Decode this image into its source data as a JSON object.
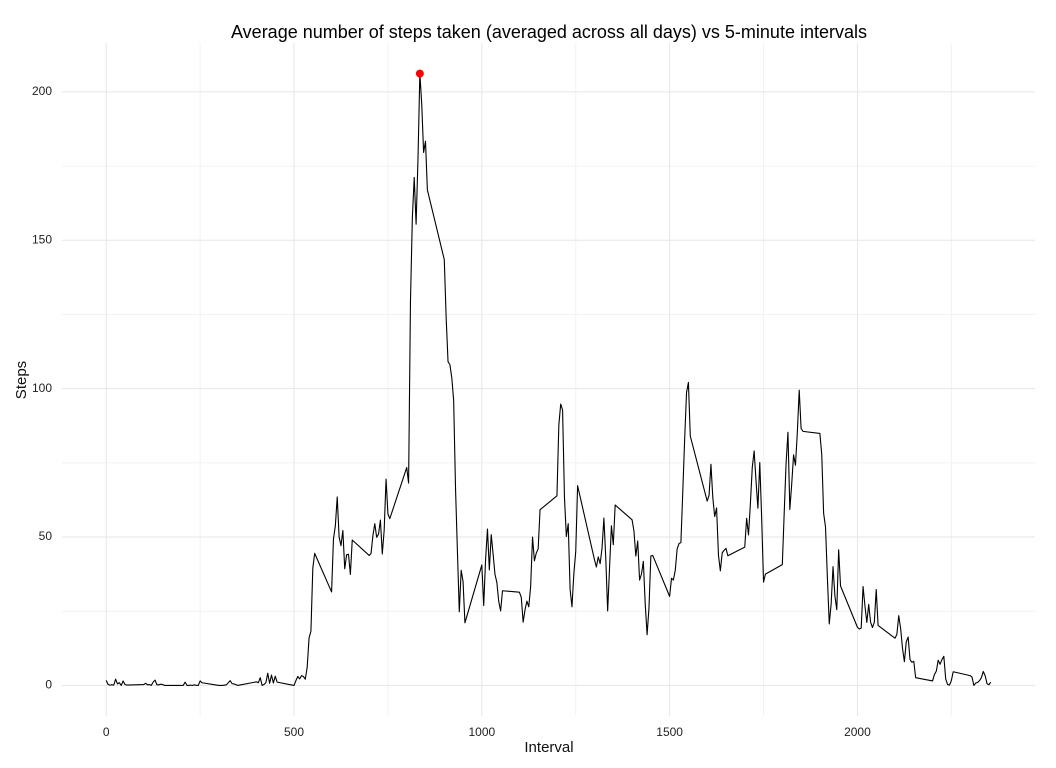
{
  "chart_data": {
    "type": "line",
    "title": "Average number of steps taken (averaged across all days) vs 5-minute intervals",
    "x_label": "Interval",
    "y_label": "Steps",
    "x": [
      0,
      5,
      10,
      15,
      20,
      25,
      30,
      35,
      40,
      45,
      50,
      55,
      100,
      105,
      110,
      115,
      120,
      125,
      130,
      135,
      140,
      145,
      150,
      155,
      200,
      205,
      210,
      215,
      220,
      225,
      230,
      235,
      240,
      245,
      250,
      255,
      300,
      310,
      320,
      330,
      335,
      340,
      350,
      400,
      405,
      410,
      415,
      420,
      425,
      430,
      435,
      440,
      445,
      450,
      455,
      500,
      505,
      510,
      515,
      520,
      525,
      530,
      535,
      540,
      545,
      550,
      555,
      600,
      605,
      610,
      615,
      620,
      625,
      630,
      635,
      640,
      645,
      650,
      655,
      700,
      705,
      710,
      715,
      720,
      725,
      730,
      735,
      740,
      745,
      750,
      755,
      800,
      805,
      810,
      815,
      820,
      825,
      830,
      835,
      840,
      845,
      850,
      855,
      900,
      905,
      910,
      915,
      920,
      925,
      930,
      935,
      940,
      945,
      950,
      955,
      1000,
      1005,
      1010,
      1015,
      1020,
      1025,
      1030,
      1035,
      1040,
      1045,
      1050,
      1055,
      1100,
      1105,
      1110,
      1115,
      1120,
      1125,
      1130,
      1135,
      1140,
      1145,
      1150,
      1155,
      1200,
      1205,
      1210,
      1215,
      1220,
      1225,
      1230,
      1235,
      1240,
      1245,
      1250,
      1255,
      1300,
      1305,
      1310,
      1315,
      1320,
      1325,
      1330,
      1335,
      1340,
      1345,
      1350,
      1355,
      1400,
      1405,
      1410,
      1415,
      1420,
      1425,
      1430,
      1435,
      1440,
      1445,
      1450,
      1455,
      1500,
      1505,
      1510,
      1515,
      1520,
      1525,
      1530,
      1535,
      1540,
      1545,
      1550,
      1555,
      1600,
      1605,
      1610,
      1615,
      1620,
      1625,
      1630,
      1635,
      1640,
      1645,
      1650,
      1655,
      1700,
      1705,
      1710,
      1715,
      1720,
      1725,
      1730,
      1735,
      1740,
      1745,
      1750,
      1755,
      1800,
      1805,
      1810,
      1815,
      1820,
      1825,
      1830,
      1835,
      1840,
      1845,
      1850,
      1855,
      1900,
      1905,
      1910,
      1915,
      1920,
      1925,
      1930,
      1935,
      1940,
      1945,
      1950,
      1955,
      2000,
      2005,
      2010,
      2015,
      2020,
      2025,
      2030,
      2035,
      2040,
      2045,
      2050,
      2055,
      2100,
      2105,
      2110,
      2115,
      2120,
      2125,
      2130,
      2135,
      2140,
      2145,
      2150,
      2155,
      2200,
      2205,
      2210,
      2215,
      2220,
      2225,
      2230,
      2235,
      2240,
      2245,
      2250,
      2255,
      2300,
      2305,
      2310,
      2315,
      2320,
      2325,
      2330,
      2335,
      2340,
      2345,
      2350,
      2355
    ],
    "series": [
      {
        "color": "#000000",
        "values": [
          1.7,
          0.3,
          0.1,
          0.2,
          0.1,
          2.1,
          0.5,
          0.9,
          0,
          1.5,
          0.3,
          0.1,
          0.3,
          0.7,
          0.2,
          0.3,
          0,
          1.1,
          1.8,
          0.2,
          0.2,
          0.4,
          0.3,
          0,
          0,
          0,
          1.1,
          0,
          0,
          0.1,
          0,
          0.2,
          0,
          0,
          1.5,
          0.9,
          0,
          0,
          0.2,
          1.6,
          0.6,
          0.5,
          0,
          1.2,
          0.9,
          2.6,
          0,
          0.3,
          0.9,
          4.1,
          0.7,
          3.5,
          0.8,
          3.1,
          1.1,
          0,
          1.6,
          3.0,
          2.2,
          3.3,
          3.0,
          2.1,
          6.1,
          16.0,
          18.3,
          39.5,
          44.5,
          31.5,
          49.3,
          53.8,
          63.5,
          50.0,
          47.1,
          52.2,
          39.3,
          44.0,
          44.2,
          37.4,
          49.0,
          43.8,
          44.4,
          50.5,
          54.5,
          49.9,
          51.0,
          55.7,
          44.3,
          52.3,
          69.5,
          57.8,
          56.2,
          73.4,
          68.2,
          129.4,
          157.5,
          171.2,
          155.4,
          177.3,
          206.17,
          195.9,
          179.6,
          183.4,
          167.0,
          143.5,
          124.0,
          109.1,
          108.1,
          103.7,
          96.0,
          66.2,
          45.2,
          24.8,
          38.8,
          35.0,
          21.1,
          40.6,
          26.9,
          42.4,
          52.7,
          38.9,
          50.8,
          44.3,
          37.4,
          34.7,
          28.3,
          25.1,
          31.9,
          31.4,
          29.7,
          21.3,
          25.5,
          28.4,
          26.5,
          33.4,
          50.0,
          42.0,
          44.6,
          46.0,
          59.2,
          63.9,
          87.7,
          94.8,
          92.8,
          63.4,
          50.2,
          54.5,
          32.4,
          26.5,
          37.7,
          45.1,
          67.3,
          42.3,
          39.9,
          43.3,
          41.0,
          46.2,
          56.4,
          42.8,
          25.1,
          39.5,
          53.8,
          47.4,
          60.8,
          55.8,
          52.0,
          43.6,
          48.7,
          35.5,
          37.5,
          41.8,
          27.5,
          17.1,
          26.1,
          43.6,
          43.8,
          30.0,
          36.1,
          35.5,
          38.8,
          46.0,
          47.8,
          48.1,
          65.3,
          82.9,
          98.7,
          102.1,
          84.0,
          62.1,
          64.1,
          74.5,
          63.2,
          56.9,
          59.8,
          43.9,
          38.6,
          44.7,
          45.5,
          46.2,
          43.7,
          46.6,
          56.3,
          50.7,
          61.2,
          73.4,
          79.0,
          68.9,
          59.7,
          75.1,
          56.5,
          34.8,
          37.5,
          40.7,
          58.0,
          74.7,
          85.3,
          59.3,
          67.8,
          77.7,
          74.2,
          85.3,
          99.5,
          86.6,
          85.6,
          84.9,
          77.8,
          58.0,
          53.4,
          36.3,
          20.7,
          27.4,
          40.0,
          30.2,
          25.5,
          45.7,
          33.5,
          19.6,
          19.0,
          19.3,
          33.3,
          26.8,
          21.2,
          27.3,
          21.3,
          19.5,
          21.3,
          32.3,
          20.2,
          15.9,
          17.2,
          23.5,
          19.2,
          12.5,
          8.0,
          14.7,
          16.3,
          8.7,
          7.8,
          8.1,
          2.6,
          1.5,
          3.7,
          4.8,
          8.5,
          7.1,
          8.7,
          9.8,
          2.2,
          0.3,
          0.1,
          1.6,
          4.6,
          3.3,
          2.8,
          0,
          0.8,
          1.0,
          1.6,
          2.6,
          4.7,
          3.3,
          0.6,
          0.2,
          1.1
        ]
      }
    ],
    "points": {
      "x": [
        835
      ],
      "values": [
        206.17
      ],
      "color": "#ff0000"
    },
    "xlim": [
      -117.75,
      2472.75
    ],
    "ylim": [
      -10.31,
      216.48
    ],
    "xticks": [
      0,
      500,
      1000,
      1500,
      2000
    ],
    "yticks": [
      0,
      50,
      100,
      150,
      200
    ],
    "x_minor_grid": [
      250,
      750,
      1250,
      1750,
      2250
    ],
    "y_minor_grid": [
      25,
      75,
      125,
      175
    ],
    "grid": true
  }
}
